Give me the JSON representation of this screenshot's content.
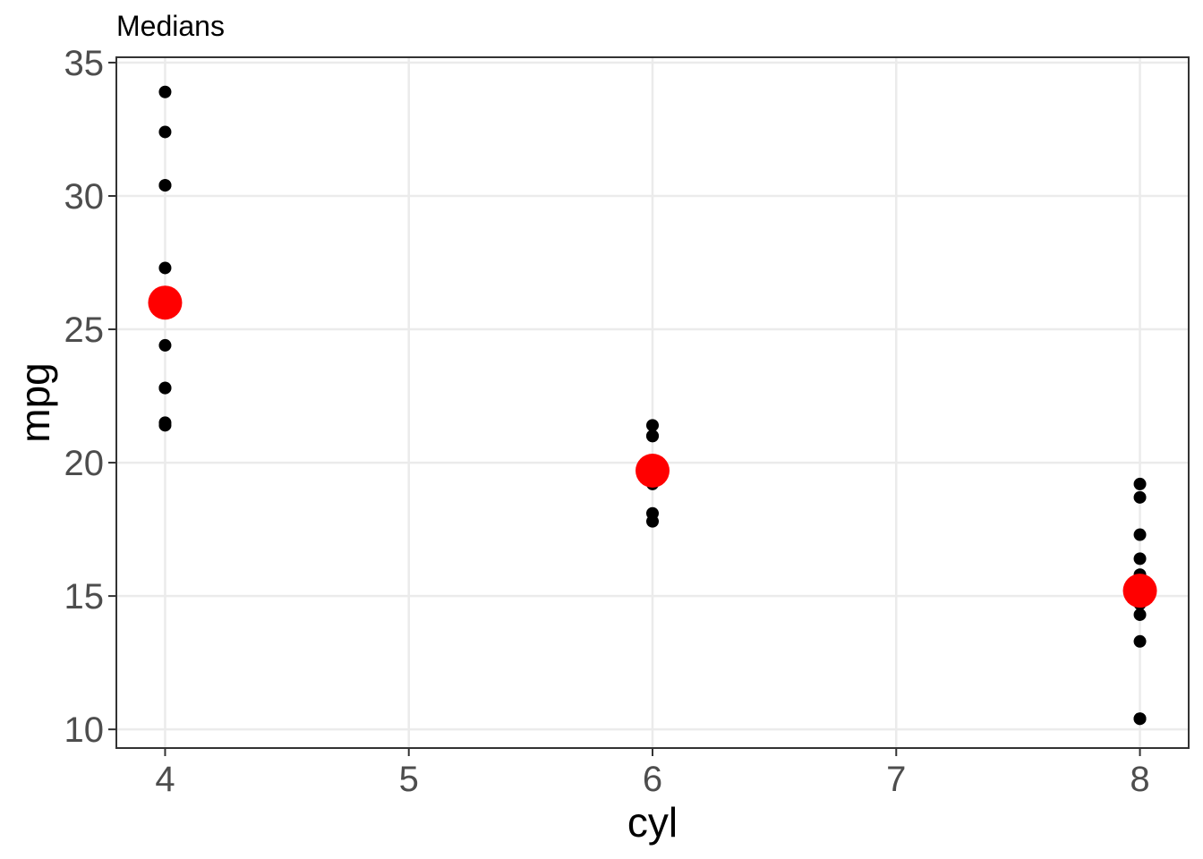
{
  "chart_data": {
    "type": "scatter",
    "title": "Medians",
    "xlabel": "cyl",
    "ylabel": "mpg",
    "xlim": [
      3.8,
      8.2
    ],
    "ylim": [
      9.3,
      35.2
    ],
    "x_ticks": [
      4,
      5,
      6,
      7,
      8
    ],
    "y_ticks": [
      10,
      15,
      20,
      25,
      30,
      35
    ],
    "grid": true,
    "series": [
      {
        "name": "observations",
        "color": "#000000",
        "points": [
          {
            "x": 4,
            "y": 33.9
          },
          {
            "x": 4,
            "y": 32.4
          },
          {
            "x": 4,
            "y": 30.4
          },
          {
            "x": 4,
            "y": 30.4
          },
          {
            "x": 4,
            "y": 27.3
          },
          {
            "x": 4,
            "y": 26.0
          },
          {
            "x": 4,
            "y": 24.4
          },
          {
            "x": 4,
            "y": 22.8
          },
          {
            "x": 4,
            "y": 22.8
          },
          {
            "x": 4,
            "y": 21.5
          },
          {
            "x": 4,
            "y": 21.4
          },
          {
            "x": 6,
            "y": 21.4
          },
          {
            "x": 6,
            "y": 21.0
          },
          {
            "x": 6,
            "y": 21.0
          },
          {
            "x": 6,
            "y": 19.7
          },
          {
            "x": 6,
            "y": 19.2
          },
          {
            "x": 6,
            "y": 18.1
          },
          {
            "x": 6,
            "y": 17.8
          },
          {
            "x": 8,
            "y": 19.2
          },
          {
            "x": 8,
            "y": 18.7
          },
          {
            "x": 8,
            "y": 17.3
          },
          {
            "x": 8,
            "y": 16.4
          },
          {
            "x": 8,
            "y": 15.8
          },
          {
            "x": 8,
            "y": 15.5
          },
          {
            "x": 8,
            "y": 15.2
          },
          {
            "x": 8,
            "y": 15.2
          },
          {
            "x": 8,
            "y": 15.0
          },
          {
            "x": 8,
            "y": 14.7
          },
          {
            "x": 8,
            "y": 14.3
          },
          {
            "x": 8,
            "y": 13.3
          },
          {
            "x": 8,
            "y": 10.4
          },
          {
            "x": 8,
            "y": 10.4
          }
        ]
      },
      {
        "name": "median",
        "color": "#ff0000",
        "points": [
          {
            "x": 4,
            "y": 26.0
          },
          {
            "x": 6,
            "y": 19.7
          },
          {
            "x": 8,
            "y": 15.2
          }
        ]
      }
    ]
  }
}
